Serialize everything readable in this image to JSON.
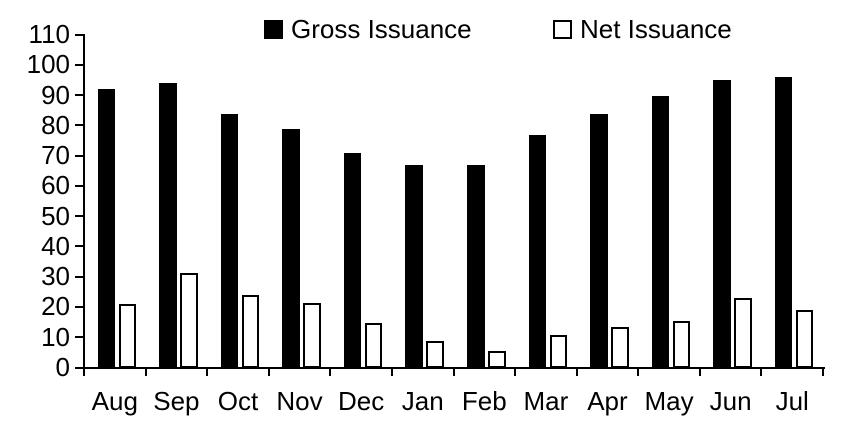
{
  "chart": {
    "background": "#ffffff",
    "axis_color": "#000000",
    "bar_fill_color": "#000000",
    "bar_outline_color": "#000000",
    "legend_position": "top-center"
  },
  "chart_data": {
    "type": "bar",
    "title": "",
    "xlabel": "",
    "ylabel": "",
    "categories": [
      "Aug",
      "Sep",
      "Oct",
      "Nov",
      "Dec",
      "Jan",
      "Feb",
      "Mar",
      "Apr",
      "May",
      "Jun",
      "Jul"
    ],
    "series": [
      {
        "name": "Gross Issuance",
        "style": "filled",
        "fill": "#000000",
        "values": [
          92,
          94,
          84,
          79,
          71,
          67,
          67,
          77,
          84,
          90,
          95,
          96
        ]
      },
      {
        "name": "Net Issuance",
        "style": "outlined",
        "fill": "#ffffff",
        "border": "#000000",
        "values": [
          21,
          31.5,
          24,
          21.5,
          15,
          9,
          5.5,
          11,
          13.5,
          15.5,
          23,
          19
        ]
      }
    ],
    "ylim": [
      0,
      110
    ],
    "ytick_step": 10,
    "ytick_labels": [
      "0",
      "10",
      "20",
      "30",
      "40",
      "50",
      "60",
      "70",
      "80",
      "90",
      "100",
      "110"
    ],
    "grid": false,
    "legend_position": "top"
  }
}
